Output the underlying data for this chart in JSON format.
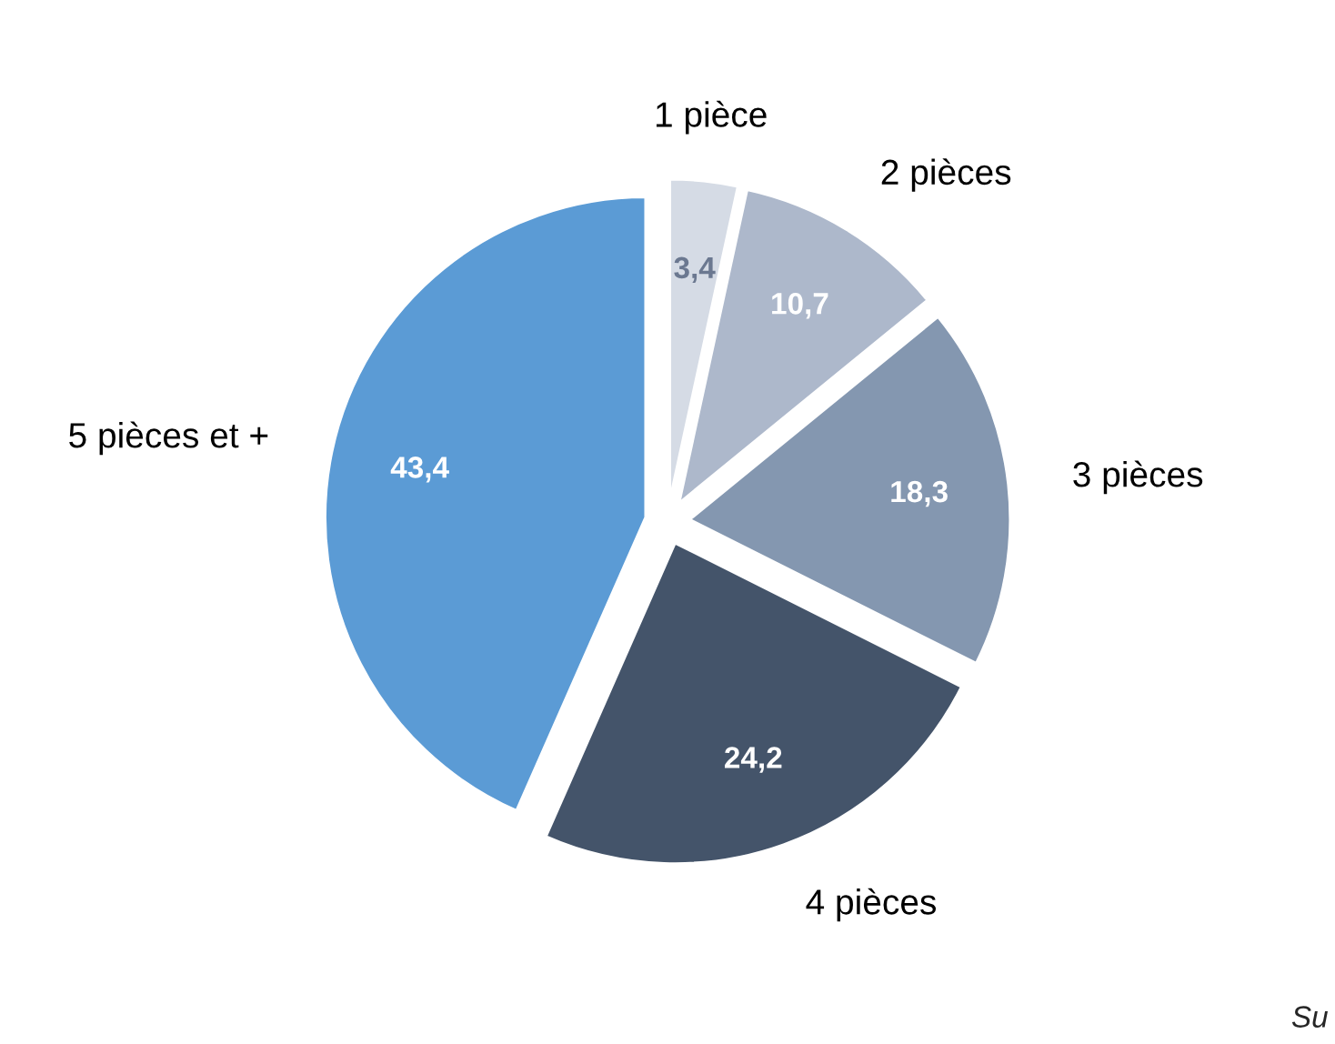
{
  "chart_data": {
    "type": "pie",
    "categories": [
      "1 pièce",
      "2 pièces",
      "3 pièces",
      "4 pièces",
      "5 pièces et +"
    ],
    "values": [
      3.4,
      10.7,
      18.3,
      24.2,
      43.4
    ],
    "value_labels": [
      "3,4",
      "10,7",
      "18,3",
      "24,2",
      "43,4"
    ],
    "colors": [
      "#d5dbe5",
      "#adb8cb",
      "#8497b0",
      "#44546a",
      "#5b9bd5"
    ],
    "legend": false,
    "annotations": [
      "Su"
    ]
  }
}
